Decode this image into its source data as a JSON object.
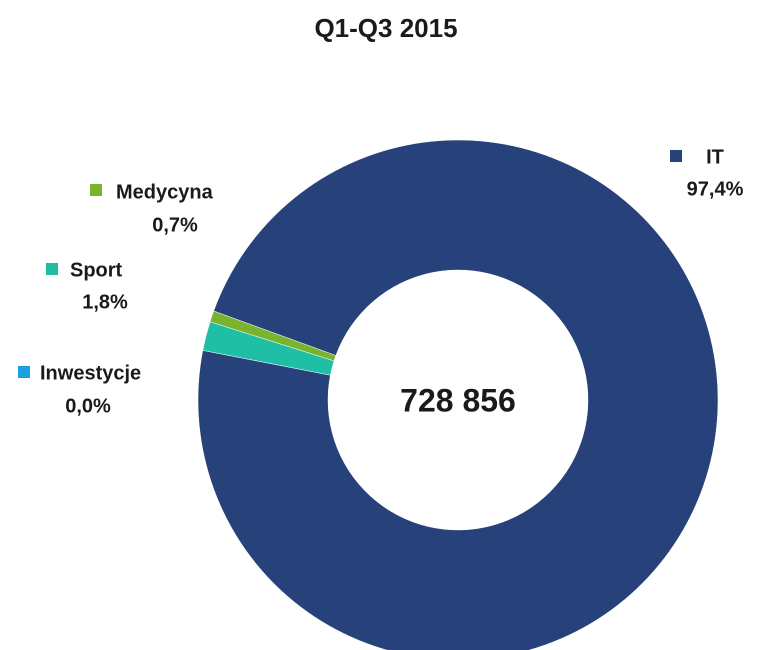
{
  "chart_data": {
    "type": "donut",
    "title": "Q1-Q3 2015",
    "categories": [
      "Inwestycje",
      "Sport",
      "Medycyna",
      "IT"
    ],
    "values": [
      0.0,
      1.8,
      0.7,
      97.4
    ],
    "value_labels": [
      "0,0%",
      "1,8%",
      "0,7%",
      "97,4%"
    ],
    "colors": [
      "#1aa0e0",
      "#1fbfa6",
      "#7ab32e",
      "#27417a"
    ],
    "center_text": "728 856",
    "start_angle": 281
  }
}
